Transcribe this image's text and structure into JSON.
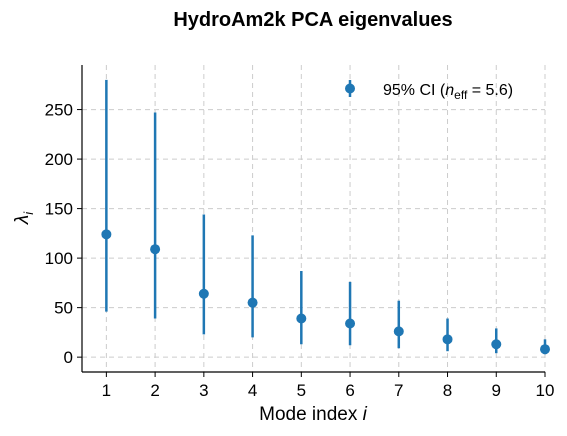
{
  "chart_data": {
    "type": "scatter",
    "title": "HydroAm2k PCA eigenvalues",
    "xlabel_prefix": "Mode index ",
    "xlabel_var": "i",
    "ylabel_sym": "λ",
    "ylabel_sub": "i",
    "xlim": [
      0.5,
      10
    ],
    "ylim": [
      -15,
      295
    ],
    "x_ticks": [
      1,
      2,
      3,
      4,
      5,
      6,
      7,
      8,
      9,
      10
    ],
    "y_ticks": [
      0,
      50,
      100,
      150,
      200,
      250
    ],
    "grid": true,
    "legend_position": "top-right",
    "colors": {
      "series": "#1f77b4",
      "grid": "#cccccc",
      "axis": "#000000"
    },
    "legend": {
      "prefix": "95% CI (",
      "n": "n",
      "sub": "eff",
      "rest": " = 5.6)"
    },
    "series": [
      {
        "x": [
          1,
          2,
          3,
          4,
          5,
          6,
          7,
          8,
          9,
          10
        ],
        "values": [
          124,
          109,
          64,
          55,
          39,
          34,
          26,
          18,
          13,
          8
        ],
        "ci_low": [
          46,
          39,
          23,
          20,
          13,
          12,
          9,
          6,
          4,
          3
        ],
        "ci_high": [
          280,
          247,
          144,
          123,
          87,
          76,
          57,
          39,
          29,
          18
        ]
      }
    ]
  }
}
